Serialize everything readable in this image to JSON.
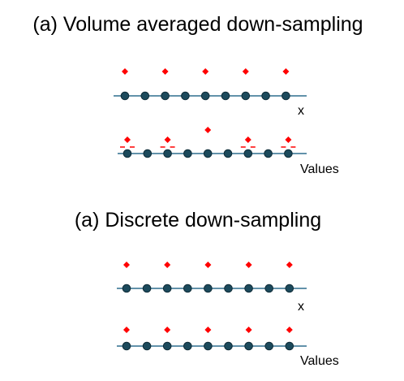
{
  "colors": {
    "axis_line": "#2e6f8e",
    "fine_node_fill": "#1c4a5c",
    "fine_node_stroke": "#0f2c38",
    "coarse_marker": "#ff0000",
    "text": "#000000"
  },
  "icons": {
    "fine_node": "filled-circle",
    "coarse_marker": "diamond",
    "average_mark": "dash-pair"
  },
  "panels": [
    {
      "title": "(a) Volume averaged down-sampling",
      "rows": [
        {
          "label": "x",
          "fine_node_count": 9,
          "coarse_marker_count": 5,
          "has_average_marks": false
        },
        {
          "label": "Values",
          "fine_node_count": 9,
          "coarse_marker_count": 5,
          "has_average_marks": true
        }
      ]
    },
    {
      "title": "(a) Discrete down-sampling",
      "rows": [
        {
          "label": "x",
          "fine_node_count": 9,
          "coarse_marker_count": 5,
          "has_average_marks": false
        },
        {
          "label": "Values",
          "fine_node_count": 9,
          "coarse_marker_count": 5,
          "has_average_marks": false
        }
      ]
    }
  ]
}
